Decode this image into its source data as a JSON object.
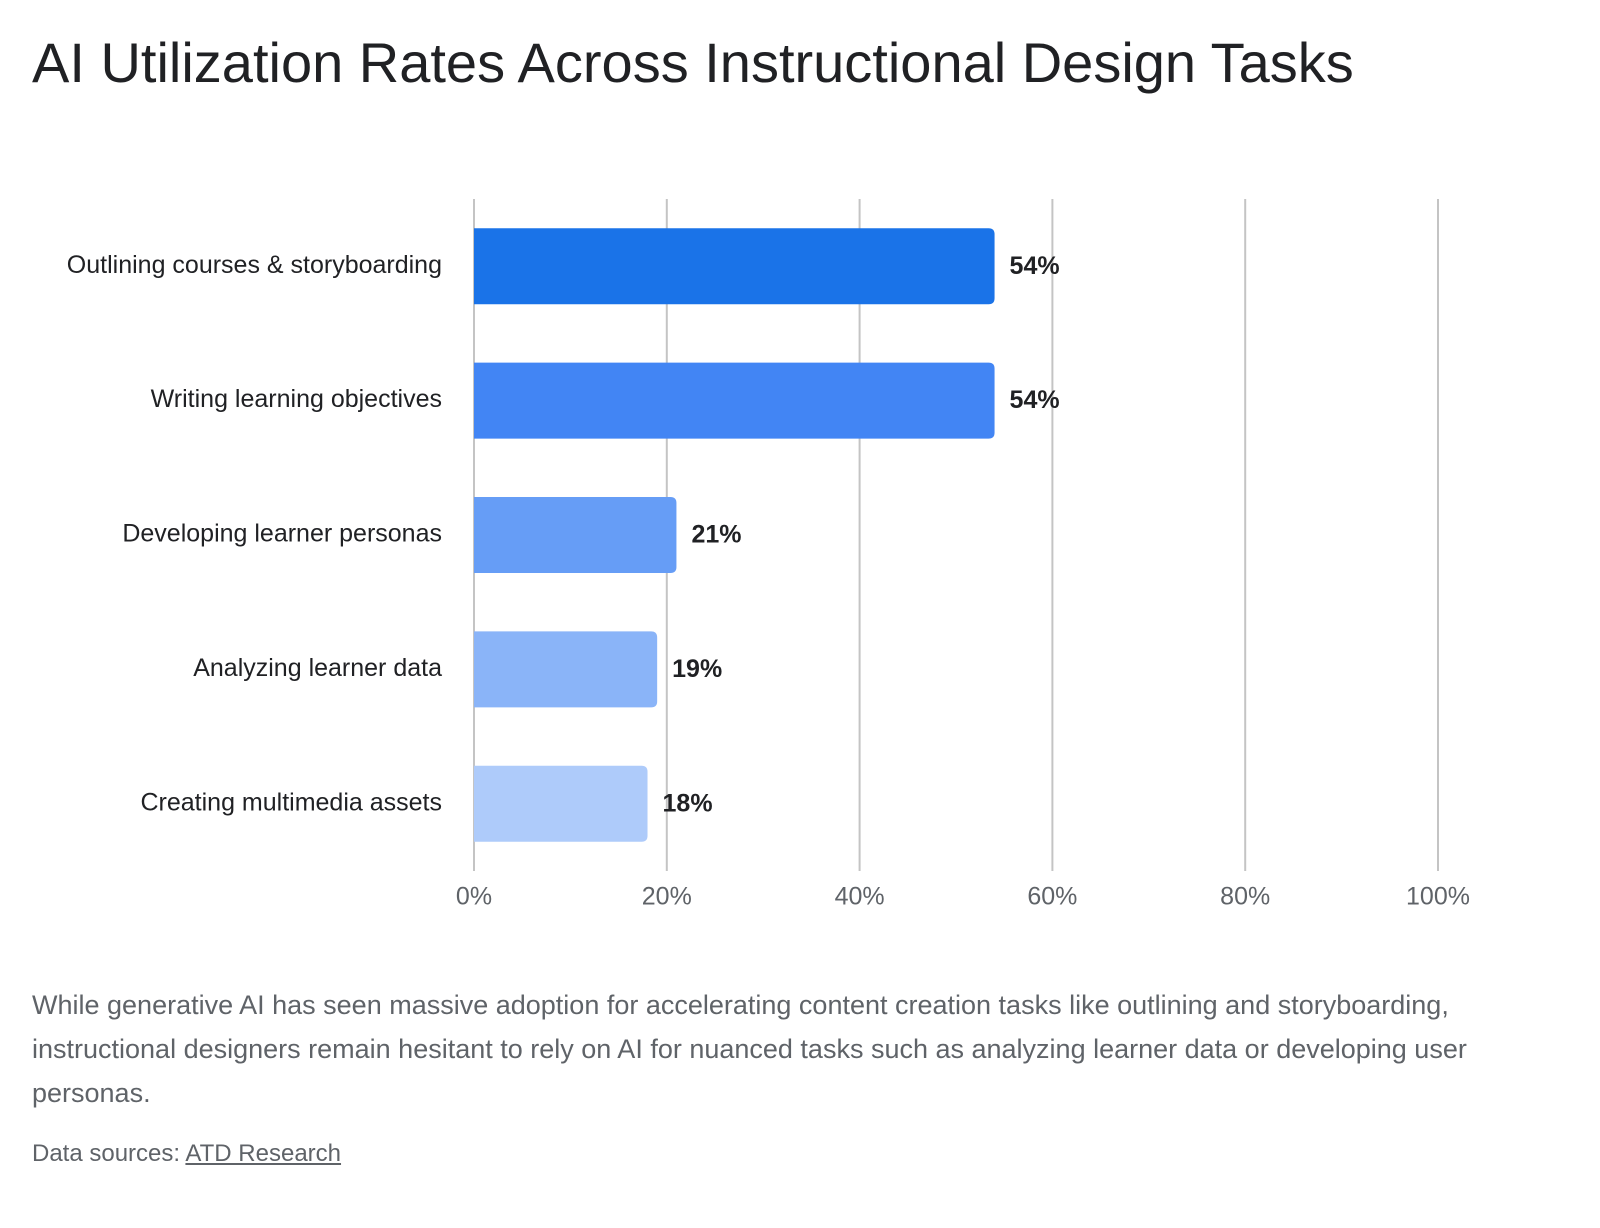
{
  "chart_data": {
    "type": "hbar",
    "title": "AI Utilization Rates Across Instructional Design Tasks",
    "categories": [
      "Outlining courses & storyboarding",
      "Writing learning objectives",
      "Developing learner personas",
      "Analyzing learner data",
      "Creating multimedia assets"
    ],
    "values": [
      54,
      54,
      21,
      19,
      18
    ],
    "value_labels": [
      "54%",
      "54%",
      "21%",
      "19%",
      "18%"
    ],
    "colors": [
      "#1a73e8",
      "#4285f4",
      "#669df6",
      "#8ab4f8",
      "#aecbfa"
    ],
    "xlim": [
      0,
      100
    ],
    "xticks": [
      {
        "value": 0,
        "label": "0%"
      },
      {
        "value": 20,
        "label": "20%"
      },
      {
        "value": 40,
        "label": "40%"
      },
      {
        "value": 60,
        "label": "60%"
      },
      {
        "value": 80,
        "label": "80%"
      },
      {
        "value": 100,
        "label": "100%"
      }
    ],
    "grid": true
  },
  "description": "While generative AI has seen massive adoption for accelerating content creation tasks like outlining and storyboarding, instructional designers remain hesitant to rely on AI for nuanced tasks such as analyzing learner data or developing user personas.",
  "source": {
    "prefix": "Data sources:",
    "link": "ATD Research"
  }
}
